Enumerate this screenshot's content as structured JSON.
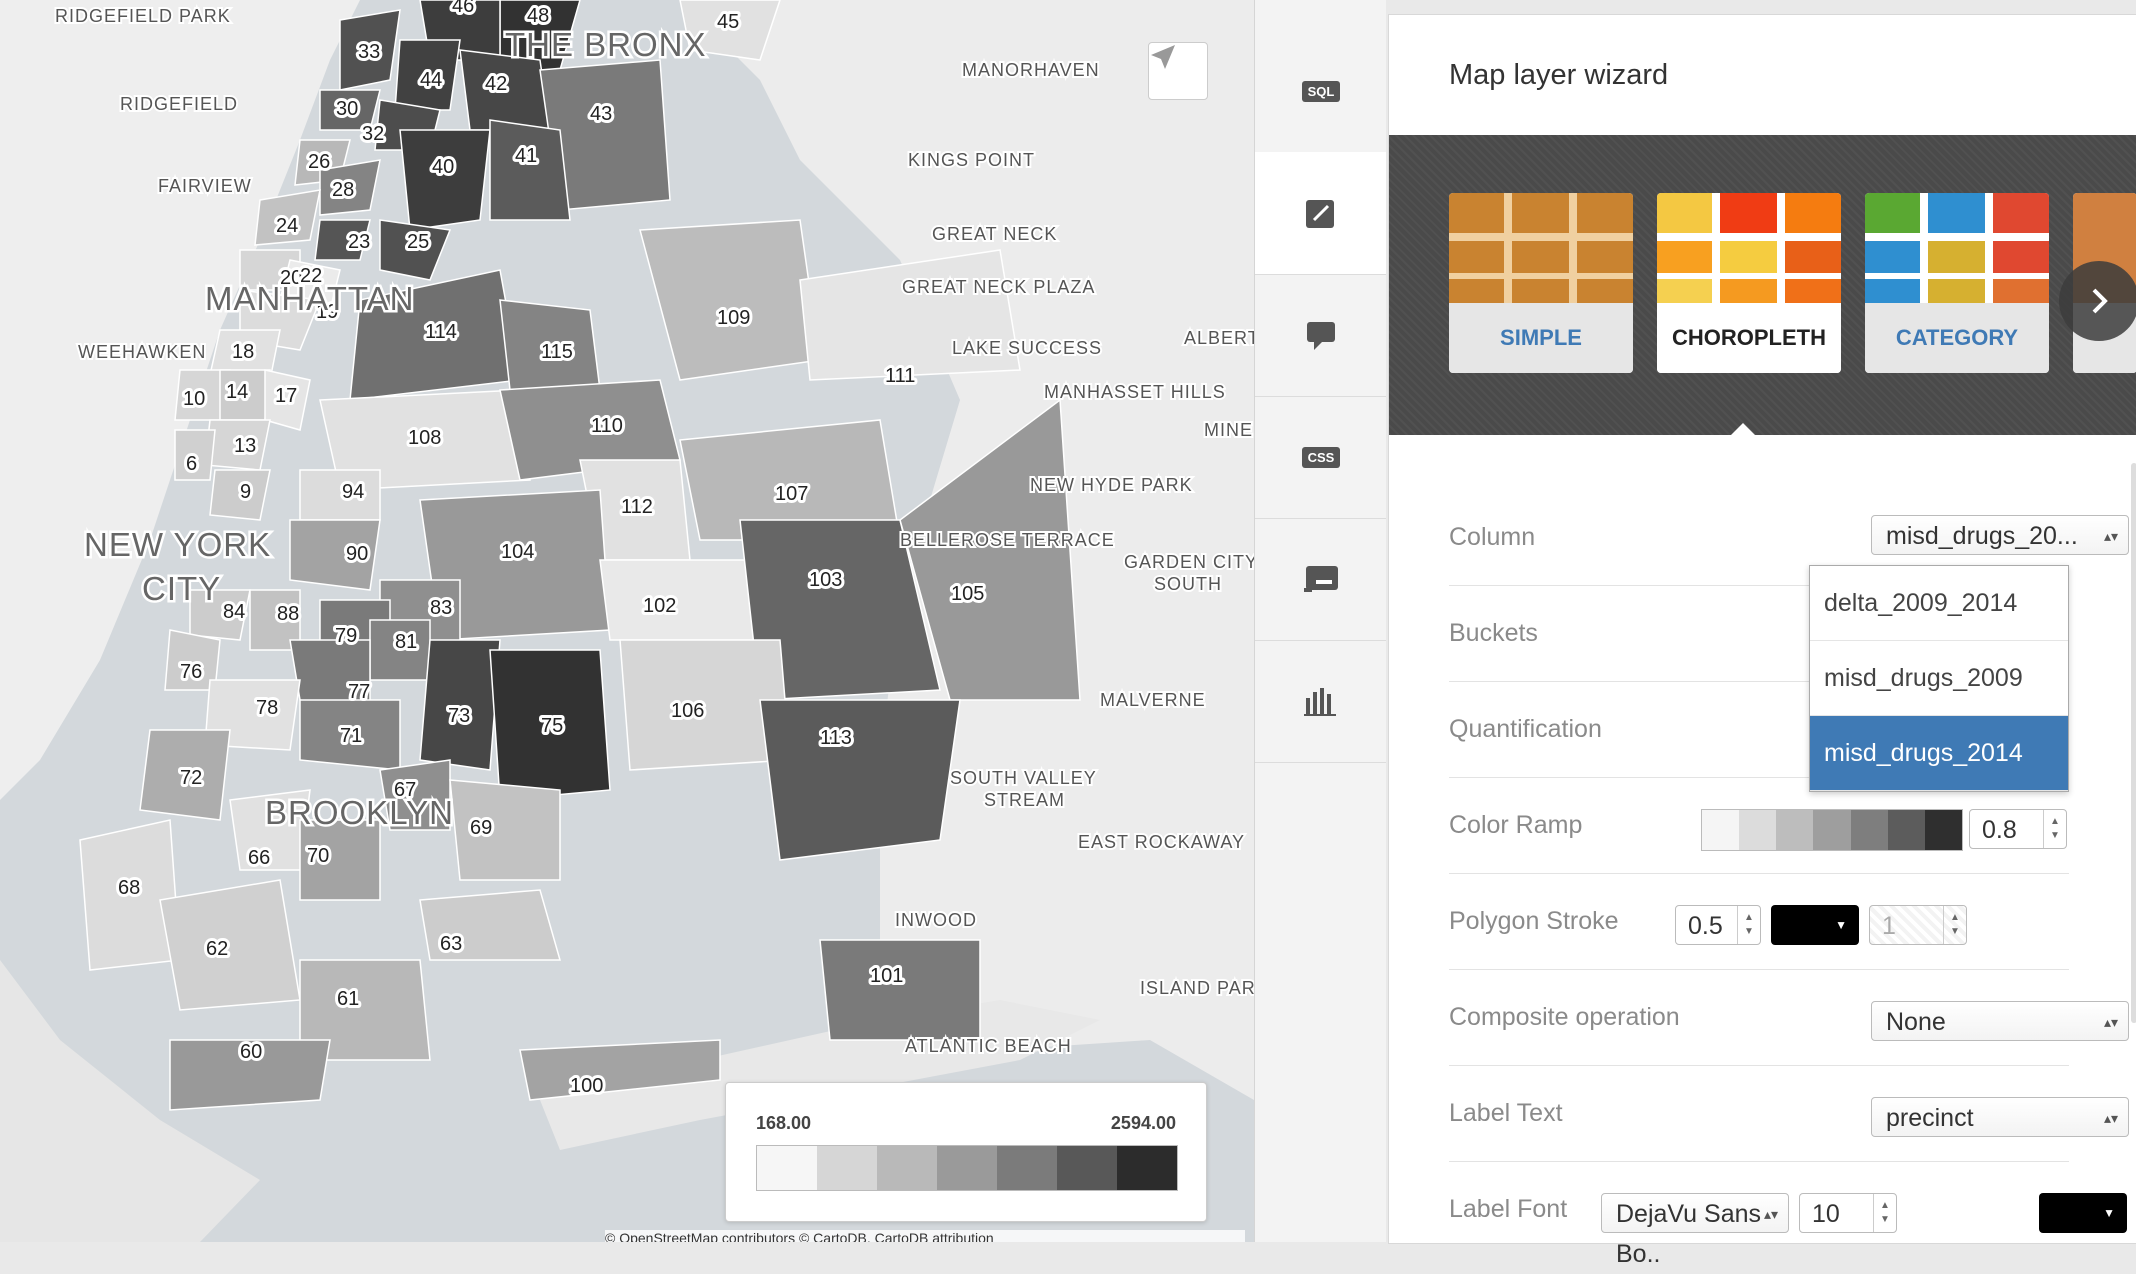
{
  "map": {
    "place_labels": [
      {
        "text": "RIDGEFIELD PARK"
      },
      {
        "text": "RIDGEFIELD"
      },
      {
        "text": "FAIRVIEW"
      },
      {
        "text": "WEEHAWKEN"
      },
      {
        "text": "THE BRONX"
      },
      {
        "text": "MANHATTAN"
      },
      {
        "text": "NEW YORK"
      },
      {
        "text": "CITY"
      },
      {
        "text": "BROOKLYN"
      },
      {
        "text": "MANORHAVEN"
      },
      {
        "text": "KINGS POINT"
      },
      {
        "text": "GREAT NECK"
      },
      {
        "text": "GREAT NECK PLAZA"
      },
      {
        "text": "LAKE SUCCESS"
      },
      {
        "text": "ALBERT"
      },
      {
        "text": "MANHASSET HILLS"
      },
      {
        "text": "MINE"
      },
      {
        "text": "NEW HYDE PARK"
      },
      {
        "text": "BELLEROSE TERRACE"
      },
      {
        "text": "GARDEN CITY"
      },
      {
        "text": "SOUTH"
      },
      {
        "text": "MALVERNE"
      },
      {
        "text": "SOUTH VALLEY"
      },
      {
        "text": "STREAM"
      },
      {
        "text": "EAST ROCKAWAY"
      },
      {
        "text": "INWOOD"
      },
      {
        "text": "ISLAND PAR"
      },
      {
        "text": "ATLANTIC BEACH"
      }
    ],
    "precincts": [
      {
        "id": "48",
        "v": 0.95
      },
      {
        "id": "46",
        "v": 0.9
      },
      {
        "id": "45",
        "v": 0.1
      },
      {
        "id": "33",
        "v": 0.8
      },
      {
        "id": "44",
        "v": 0.88
      },
      {
        "id": "42",
        "v": 0.85
      },
      {
        "id": "43",
        "v": 0.6
      },
      {
        "id": "30",
        "v": 0.7
      },
      {
        "id": "32",
        "v": 0.82
      },
      {
        "id": "40",
        "v": 0.9
      },
      {
        "id": "41",
        "v": 0.75
      },
      {
        "id": "26",
        "v": 0.3
      },
      {
        "id": "28",
        "v": 0.55
      },
      {
        "id": "24",
        "v": 0.25
      },
      {
        "id": "23",
        "v": 0.78
      },
      {
        "id": "25",
        "v": 0.8
      },
      {
        "id": "20",
        "v": 0.15
      },
      {
        "id": "22",
        "v": 0.05
      },
      {
        "id": "19",
        "v": 0.12
      },
      {
        "id": "114",
        "v": 0.65
      },
      {
        "id": "115",
        "v": 0.55
      },
      {
        "id": "109",
        "v": 0.28
      },
      {
        "id": "111",
        "v": 0.08
      },
      {
        "id": "18",
        "v": 0.1
      },
      {
        "id": "10",
        "v": 0.15
      },
      {
        "id": "14",
        "v": 0.2
      },
      {
        "id": "17",
        "v": 0.08
      },
      {
        "id": "13",
        "v": 0.15
      },
      {
        "id": "6",
        "v": 0.18
      },
      {
        "id": "9",
        "v": 0.2
      },
      {
        "id": "108",
        "v": 0.1
      },
      {
        "id": "110",
        "v": 0.5
      },
      {
        "id": "94",
        "v": 0.12
      },
      {
        "id": "112",
        "v": 0.1
      },
      {
        "id": "107",
        "v": 0.3
      },
      {
        "id": "104",
        "v": 0.45
      },
      {
        "id": "90",
        "v": 0.4
      },
      {
        "id": "102",
        "v": 0.06
      },
      {
        "id": "103",
        "v": 0.7
      },
      {
        "id": "105",
        "v": 0.45
      },
      {
        "id": "84",
        "v": 0.2
      },
      {
        "id": "88",
        "v": 0.25
      },
      {
        "id": "83",
        "v": 0.5
      },
      {
        "id": "79",
        "v": 0.6
      },
      {
        "id": "81",
        "v": 0.55
      },
      {
        "id": "76",
        "v": 0.2
      },
      {
        "id": "77",
        "v": 0.6
      },
      {
        "id": "73",
        "v": 0.85
      },
      {
        "id": "75",
        "v": 0.95
      },
      {
        "id": "106",
        "v": 0.15
      },
      {
        "id": "78",
        "v": 0.1
      },
      {
        "id": "71",
        "v": 0.55
      },
      {
        "id": "113",
        "v": 0.75
      },
      {
        "id": "72",
        "v": 0.35
      },
      {
        "id": "67",
        "v": 0.5
      },
      {
        "id": "69",
        "v": 0.25
      },
      {
        "id": "66",
        "v": 0.1
      },
      {
        "id": "70",
        "v": 0.4
      },
      {
        "id": "68",
        "v": 0.12
      },
      {
        "id": "62",
        "v": 0.18
      },
      {
        "id": "63",
        "v": 0.2
      },
      {
        "id": "61",
        "v": 0.3
      },
      {
        "id": "60",
        "v": 0.45
      },
      {
        "id": "100",
        "v": 0.4
      },
      {
        "id": "101",
        "v": 0.6
      }
    ],
    "legend": {
      "min": "168.00",
      "max": "2594.00",
      "colors": [
        "#f6f6f6",
        "#d6d6d6",
        "#b9b9b9",
        "#9a9a9a",
        "#7b7b7b",
        "#585858",
        "#2c2c2c"
      ]
    },
    "attribution": "© OpenStreetMap contributors © CartoDB, CartoDB attribution"
  },
  "toolbar": {
    "items": [
      {
        "name": "sql",
        "label": "SQL"
      },
      {
        "name": "wizard",
        "label": ""
      },
      {
        "name": "infowindow",
        "label": ""
      },
      {
        "name": "css",
        "label": "CSS"
      },
      {
        "name": "legends",
        "label": ""
      },
      {
        "name": "widgets",
        "label": ""
      }
    ]
  },
  "panel": {
    "title": "Map layer wizard",
    "wizards": [
      {
        "label": "SIMPLE",
        "selected": false
      },
      {
        "label": "CHOROPLETH",
        "selected": true
      },
      {
        "label": "CATEGORY",
        "selected": false
      }
    ],
    "column": {
      "label": "Column",
      "value": "misd_drugs_20...",
      "options": [
        "delta_2009_2014",
        "misd_drugs_2009",
        "misd_drugs_2014"
      ],
      "active": "misd_drugs_2014"
    },
    "buckets": {
      "label": "Buckets"
    },
    "quantification": {
      "label": "Quantification"
    },
    "color_ramp": {
      "label": "Color Ramp",
      "opacity": "0.8",
      "colors": [
        "#f5f5f5",
        "#dcdcdc",
        "#bdbdbd",
        "#9e9e9e",
        "#7e7e7e",
        "#5c5c5c",
        "#2f2f2f"
      ]
    },
    "polygon_stroke": {
      "label": "Polygon Stroke",
      "width": "0.5",
      "color": "#000000",
      "opacity": "1"
    },
    "composite": {
      "label": "Composite operation",
      "value": "None"
    },
    "label_text": {
      "label": "Label Text",
      "value": "precinct"
    },
    "label_font": {
      "label": "Label Font",
      "font": "DejaVu Sans Bo..",
      "size": "10",
      "color": "#000000"
    }
  }
}
